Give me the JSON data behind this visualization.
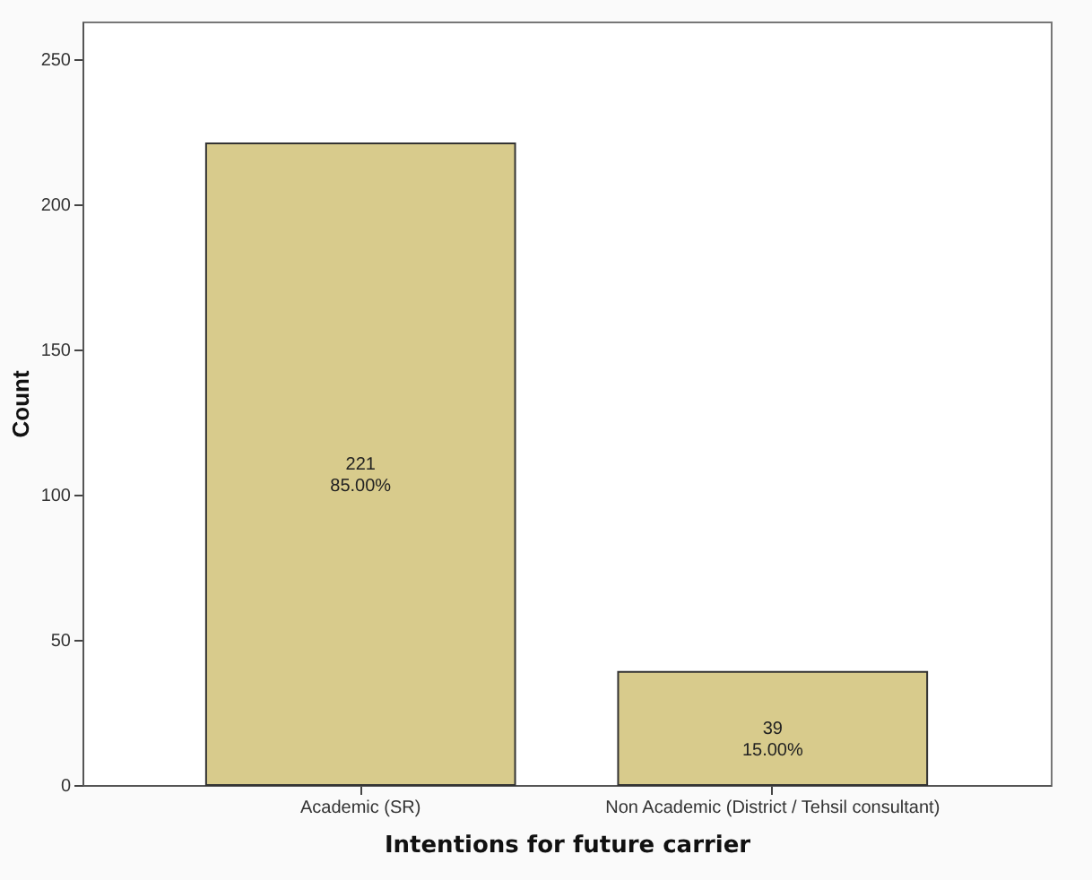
{
  "chart_data": {
    "type": "bar",
    "xlabel": "Intentions for future carrier",
    "ylabel": "Count",
    "categories": [
      "Academic (SR)",
      "Non Academic (District / Tehsil consultant)"
    ],
    "values": [
      221,
      39
    ],
    "value_labels": [
      "221\n85.00%",
      "39\n15.00%"
    ],
    "color": "#d8cb8c",
    "ylim": [
      0,
      263
    ],
    "yticks": [
      0,
      50,
      100,
      150,
      200,
      250
    ],
    "grid": false
  }
}
